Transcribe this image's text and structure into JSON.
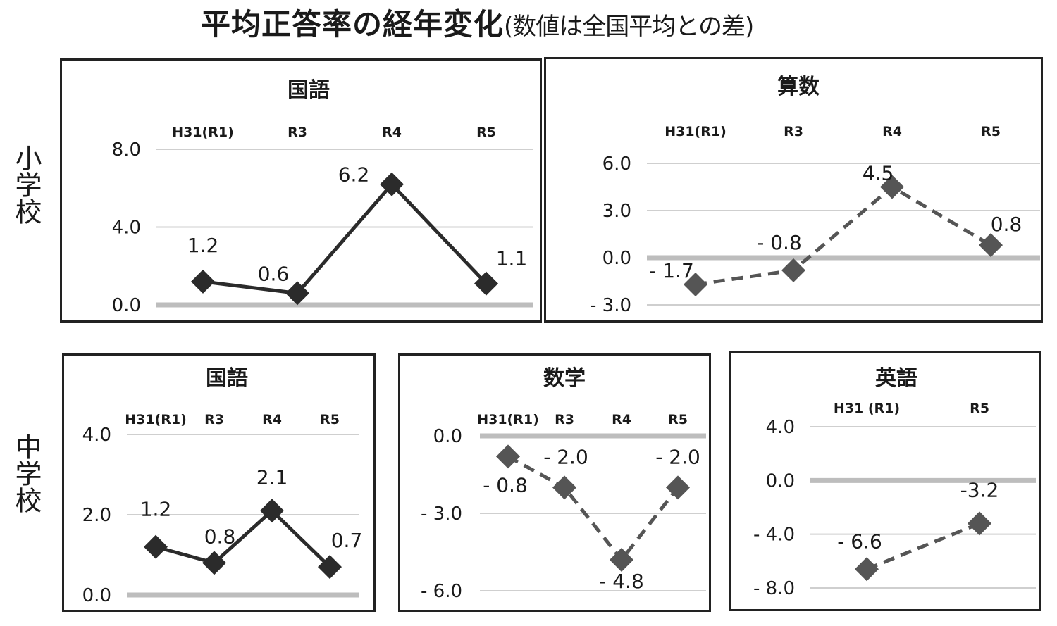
{
  "title": {
    "main": "平均正答率の経年変化",
    "sub": "(数値は全国平均との差)"
  },
  "row_labels": {
    "elementary": "小学校",
    "junior_high": "中学校"
  },
  "colors": {
    "solid_series": "#2b2b2b",
    "dashed_series": "#555555",
    "gridline": "#cfcfcf",
    "zero_line": "#bdbdbd",
    "border": "#222222"
  },
  "chart_data": [
    {
      "type": "line",
      "group": "小学校",
      "title": "国語",
      "categories": [
        "H31(R1)",
        "R3",
        "R4",
        "R5"
      ],
      "values": [
        1.2,
        0.6,
        6.2,
        1.1
      ],
      "value_labels": [
        "1.2",
        "0.6",
        "6.2",
        "1.1"
      ],
      "yticks": [
        "8.0",
        "4.0",
        "0.0"
      ],
      "ylim": [
        0,
        8
      ],
      "line_style": "solid",
      "xlabel": "",
      "ylabel": "",
      "grid": true
    },
    {
      "type": "line",
      "group": "小学校",
      "title": "算数",
      "categories": [
        "H31(R1)",
        "R3",
        "R4",
        "R5"
      ],
      "values": [
        -1.7,
        -0.8,
        4.5,
        0.8
      ],
      "value_labels": [
        "- 1.7",
        "- 0.8",
        "4.5",
        "0.8"
      ],
      "yticks": [
        "6.0",
        "3.0",
        "0.0",
        "- 3.0"
      ],
      "ylim": [
        -3,
        6
      ],
      "line_style": "dashed",
      "xlabel": "",
      "ylabel": "",
      "grid": true
    },
    {
      "type": "line",
      "group": "中学校",
      "title": "国語",
      "categories": [
        "H31(R1)",
        "R3",
        "R4",
        "R5"
      ],
      "values": [
        1.2,
        0.8,
        2.1,
        0.7
      ],
      "value_labels": [
        "1.2",
        "0.8",
        "2.1",
        "0.7"
      ],
      "yticks": [
        "4.0",
        "2.0",
        "0.0"
      ],
      "ylim": [
        0,
        4
      ],
      "line_style": "solid",
      "xlabel": "",
      "ylabel": "",
      "grid": true
    },
    {
      "type": "line",
      "group": "中学校",
      "title": "数学",
      "categories": [
        "H31(R1)",
        "R3",
        "R4",
        "R5"
      ],
      "values": [
        -0.8,
        -2.0,
        -4.8,
        -2.0
      ],
      "value_labels": [
        "- 0.8",
        "- 2.0",
        "- 4.8",
        "- 2.0"
      ],
      "yticks": [
        "0.0",
        "- 3.0",
        "- 6.0"
      ],
      "ylim": [
        -6,
        0
      ],
      "line_style": "dashed",
      "xlabel": "",
      "ylabel": "",
      "grid": true
    },
    {
      "type": "line",
      "group": "中学校",
      "title": "英語",
      "categories": [
        "H31 (R1)",
        "R5"
      ],
      "values": [
        -6.6,
        -3.2
      ],
      "value_labels": [
        "- 6.6",
        "-3.2"
      ],
      "yticks": [
        "4.0",
        "0.0",
        "- 4.0",
        "- 8.0"
      ],
      "ylim": [
        -8,
        4
      ],
      "line_style": "dashed",
      "xlabel": "",
      "ylabel": "",
      "grid": true
    }
  ]
}
